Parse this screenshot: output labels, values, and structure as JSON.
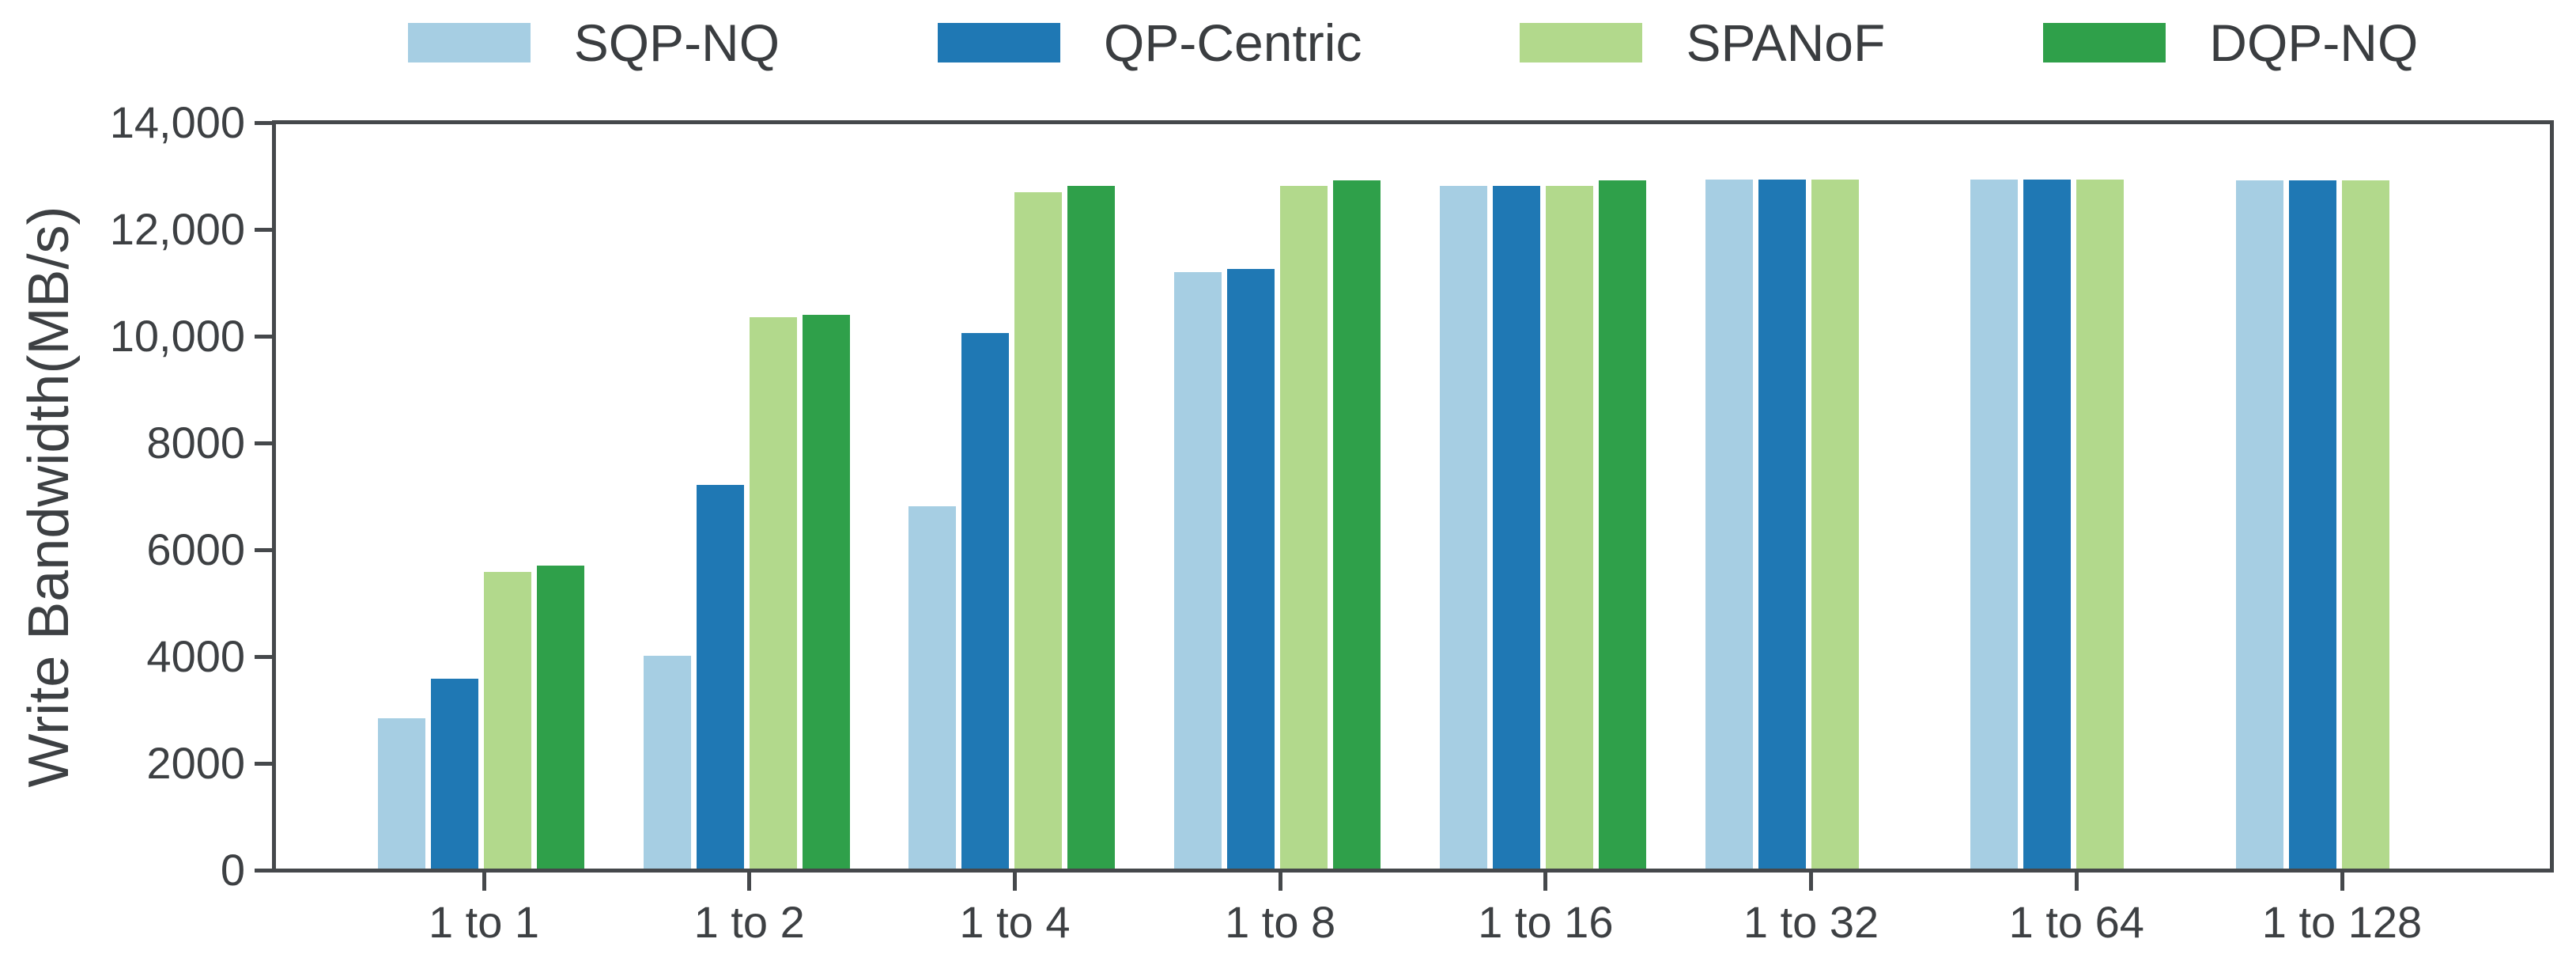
{
  "chart_data": {
    "type": "bar",
    "title": "",
    "xlabel": "",
    "ylabel": "Write Bandwidth(MB/s)",
    "ylim": [
      0,
      14000
    ],
    "grid": false,
    "legend_position": "top-center",
    "y_ticks": [
      {
        "value": 0,
        "label": "0"
      },
      {
        "value": 2000,
        "label": "2000"
      },
      {
        "value": 4000,
        "label": "4000"
      },
      {
        "value": 6000,
        "label": "6000"
      },
      {
        "value": 8000,
        "label": "8000"
      },
      {
        "value": 10000,
        "label": "10,000"
      },
      {
        "value": 12000,
        "label": "12,000"
      },
      {
        "value": 14000,
        "label": "14,000"
      }
    ],
    "categories": [
      "1 to 1",
      "1 to 2",
      "1 to 4",
      "1 to 8",
      "1 to 16",
      "1 to 32",
      "1 to 64",
      "1 to 128"
    ],
    "series": [
      {
        "name": "SQP-NQ",
        "color": "#a6cee3",
        "values": [
          2850,
          4020,
          6820,
          11200,
          12820,
          12930,
          12930,
          12920
        ]
      },
      {
        "name": "QP-Centric",
        "color": "#1f78b4",
        "values": [
          3580,
          7220,
          10060,
          11260,
          12820,
          12930,
          12930,
          12920
        ]
      },
      {
        "name": "SPANoF",
        "color": "#b2d98c",
        "values": [
          5580,
          10350,
          12700,
          12820,
          12820,
          12930,
          12930,
          12920
        ]
      },
      {
        "name": "DQP-NQ",
        "color": "#2fa04a",
        "values": [
          5700,
          10400,
          12820,
          12920,
          12920,
          null,
          null,
          null
        ]
      }
    ]
  },
  "axis_color": "#45484b",
  "text_color": "#3d4043"
}
